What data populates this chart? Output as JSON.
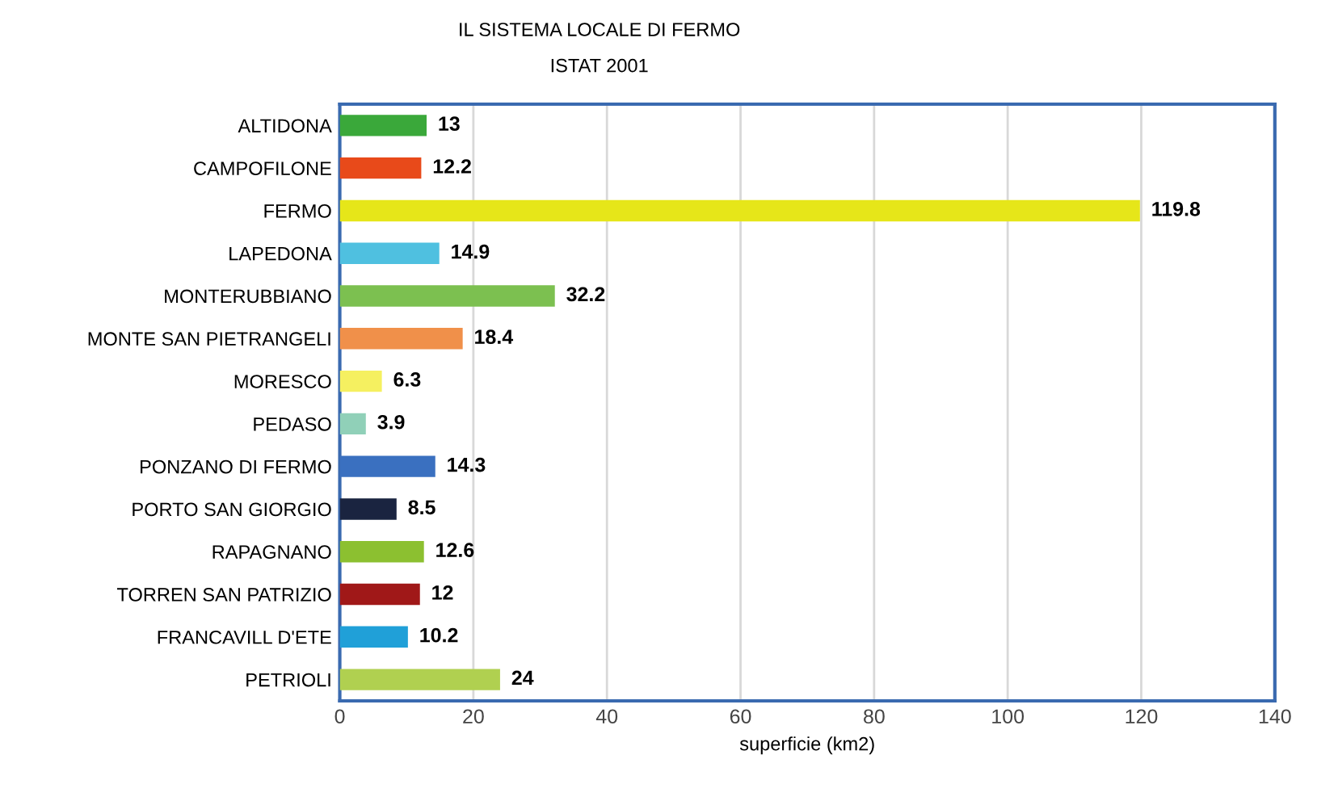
{
  "chart_data": {
    "type": "bar",
    "orientation": "horizontal",
    "title": "IL SISTEMA LOCALE DI FERMO",
    "subtitle": "ISTAT 2001",
    "xlabel": "superficie (km2)",
    "categories": [
      "ALTIDONA",
      "CAMPOFILONE",
      "FERMO",
      "LAPEDONA",
      "MONTERUBBIANO",
      "MONTE SAN PIETRANGELI",
      "MORESCO",
      "PEDASO",
      "PONZANO DI FERMO",
      "PORTO SAN GIORGIO",
      "RAPAGNANO",
      "TORREN SAN PATRIZIO",
      "FRANCAVILL D'ETE",
      "PETRIOLI"
    ],
    "values": [
      13,
      12.2,
      119.8,
      14.9,
      32.2,
      18.4,
      6.3,
      3.9,
      14.3,
      8.5,
      12.6,
      12,
      10.2,
      24
    ],
    "colors": [
      "#3aa83a",
      "#e84a1a",
      "#e6e619",
      "#4fc0e0",
      "#7cc050",
      "#f0904a",
      "#f5f060",
      "#90d0b8",
      "#3a70c0",
      "#1a2440",
      "#8cc030",
      "#a01818",
      "#20a0d8",
      "#b0d050"
    ],
    "xlim": [
      0,
      140
    ],
    "xticks": [
      0,
      20,
      40,
      60,
      80,
      100,
      120,
      140
    ],
    "grid": "x",
    "data_labels": true
  }
}
